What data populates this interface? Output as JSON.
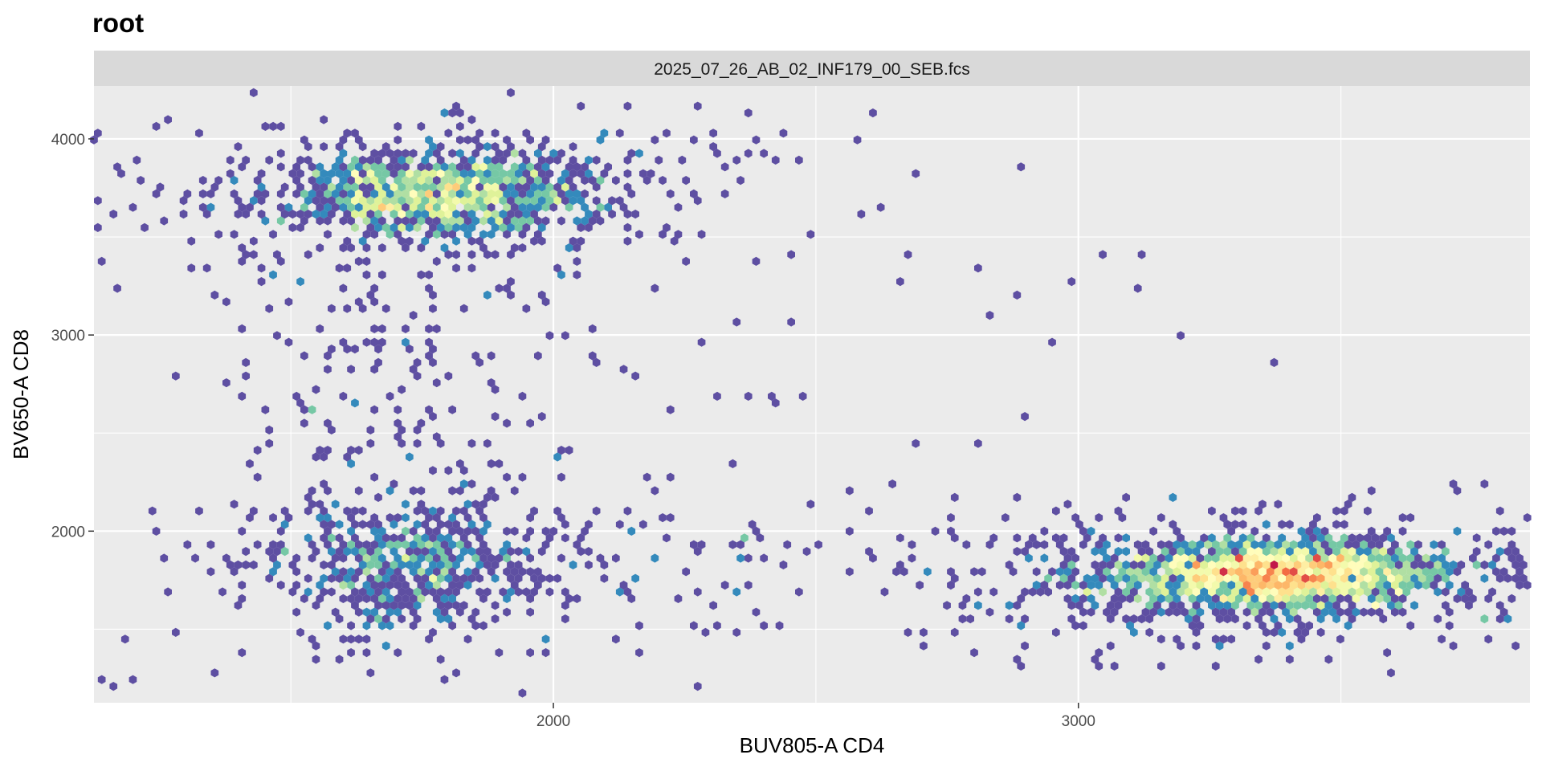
{
  "chart_data": {
    "type": "heatmap",
    "subtype": "hexbin",
    "title": "root",
    "facet_label": "2025_07_26_AB_02_INF179_00_SEB.fcs",
    "xlabel": "BUV805-A CD4",
    "ylabel": "BV650-A CD8",
    "xlim": [
      1125,
      3860
    ],
    "ylim": [
      1125,
      4270
    ],
    "x_ticks": [
      2000,
      3000
    ],
    "y_ticks": [
      2000,
      3000,
      4000
    ],
    "x_minor": [
      1500,
      2500,
      3500
    ],
    "y_minor": [
      1500,
      2500,
      3500
    ],
    "grid": true,
    "palette": "spectral",
    "colors": {
      "panel_bg": "#ebebeb",
      "strip_bg": "#d9d9d9",
      "grid": "#ffffff",
      "low": "#5e4fa2",
      "high": "#c2164a"
    },
    "populations": [
      {
        "x": 1780,
        "y": 3720,
        "sx": 150,
        "sy": 110,
        "n": 1300,
        "peak": 0.68
      },
      {
        "x": 1710,
        "y": 1840,
        "sx": 130,
        "sy": 170,
        "n": 650,
        "peak": 0.33
      },
      {
        "x": 3380,
        "y": 1780,
        "sx": 150,
        "sy": 85,
        "n": 2200,
        "peak": 1.0
      }
    ]
  }
}
